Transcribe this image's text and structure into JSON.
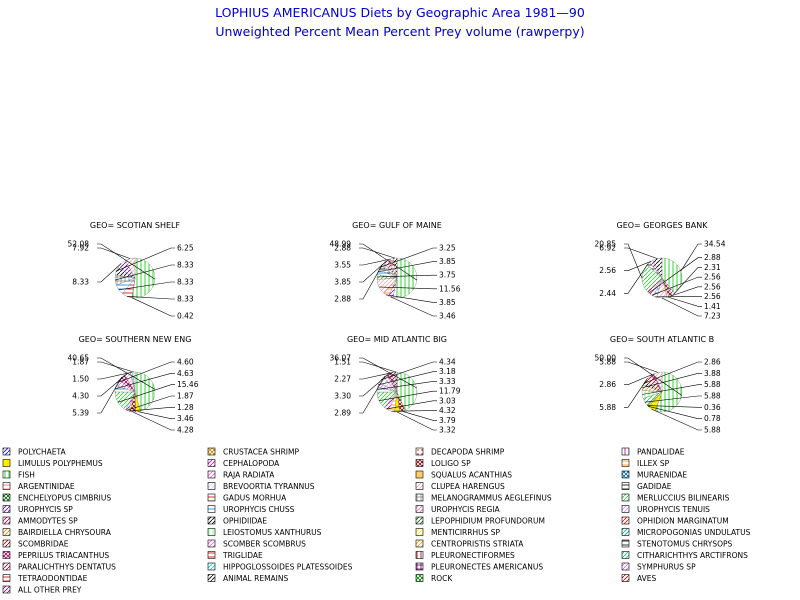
{
  "chart_data": {
    "type": "pie",
    "title": "LOPHIUS AMERICANUS Diets by Geographic Area 1981—90",
    "subtitle": "Unweighted Percent Mean Percent Prey  volume (rawperpy)",
    "legend": {
      "placement": "bottom",
      "items": [
        {
          "name": "POLYCHAETA",
          "color": "#0000ff",
          "pattern": "diag"
        },
        {
          "name": "CRUSTACEA SHRIMP",
          "color": "#cc8800",
          "pattern": "x"
        },
        {
          "name": "DECAPODA SHRIMP",
          "color": "#ff0000",
          "pattern": "dots"
        },
        {
          "name": "PANDALIDAE",
          "color": "#aa00aa",
          "pattern": "vert"
        },
        {
          "name": "LIMULUS POLYPHEMUS",
          "color": "#ffee00",
          "pattern": "solid"
        },
        {
          "name": "CEPHALOPODA",
          "color": "#cc00cc",
          "pattern": "diag"
        },
        {
          "name": "LOLIGO SP",
          "color": "#880000",
          "pattern": "x"
        },
        {
          "name": "ILLEX SP",
          "color": "#ff8800",
          "pattern": "horiz"
        },
        {
          "name": "FISH",
          "color": "#00cc00",
          "pattern": "vert"
        },
        {
          "name": "RAJA RADIATA",
          "color": "#ff66cc",
          "pattern": "diag"
        },
        {
          "name": "SQUALUS ACANTHIAS",
          "color": "#ffcc66",
          "pattern": "solid"
        },
        {
          "name": "MURAENIDAE",
          "color": "#0066aa",
          "pattern": "x"
        },
        {
          "name": "ARGENTINIDAE",
          "color": "#ff6666",
          "pattern": "horiz"
        },
        {
          "name": "BREVOORTIA TYRANNUS",
          "color": "#ccccff",
          "pattern": "diag"
        },
        {
          "name": "CLUPEA HARENGUS",
          "color": "#ffaaaa",
          "pattern": "diag"
        },
        {
          "name": "GADIDAE",
          "color": "#000000",
          "pattern": "horiz"
        },
        {
          "name": "ENCHELYOPUS CIMBRIUS",
          "color": "#006600",
          "pattern": "x"
        },
        {
          "name": "GADUS MORHUA",
          "color": "#cc0000",
          "pattern": "horiz"
        },
        {
          "name": "MELANOGRAMMUS AEGLEFINUS",
          "color": "#888888",
          "pattern": "grid"
        },
        {
          "name": "MERLUCCIUS BILINEARIS",
          "color": "#33cc33",
          "pattern": "diag"
        },
        {
          "name": "UROPHYCIS SP",
          "color": "#660099",
          "pattern": "diag"
        },
        {
          "name": "UROPHYCIS CHUSS",
          "color": "#0088ff",
          "pattern": "horiz"
        },
        {
          "name": "UROPHYCIS REGIA",
          "color": "#ff66aa",
          "pattern": "diag"
        },
        {
          "name": "UROPHYCIS TENUIS",
          "color": "#cc99ff",
          "pattern": "diag"
        },
        {
          "name": "AMMODYTES SP",
          "color": "#aa0066",
          "pattern": "diag"
        },
        {
          "name": "OPHIDIIDAE",
          "color": "#000000",
          "pattern": "diag"
        },
        {
          "name": "LEPOPHIDIUM PROFUNDORUM",
          "color": "#006600",
          "pattern": "diag"
        },
        {
          "name": "OPHIDION MARGINATUM",
          "color": "#ff0000",
          "pattern": "diag"
        },
        {
          "name": "BAIRDIELLA CHRYSOURA",
          "color": "#cc8800",
          "pattern": "diag"
        },
        {
          "name": "LEIOSTOMUS XANTHURUS",
          "color": "#66ff66",
          "pattern": "vert"
        },
        {
          "name": "MENTICIRRHUS SP",
          "color": "#ffee00",
          "pattern": "diag"
        },
        {
          "name": "MICROPOGONIAS UNDULATUS",
          "color": "#00aaaa",
          "pattern": "diag"
        },
        {
          "name": "SCOMBRIDAE",
          "color": "#aa0000",
          "pattern": "diag"
        },
        {
          "name": "SCOMBER SCOMBRUS",
          "color": "#ff66cc",
          "pattern": "diag"
        },
        {
          "name": "CENTROPRISTIS STRIATA",
          "color": "#ff9900",
          "pattern": "diag"
        },
        {
          "name": "STENOTOMUS CHRYSOPS",
          "color": "#000000",
          "pattern": "horiz"
        },
        {
          "name": "PEPRILUS TRIACANTHUS",
          "color": "#aa0066",
          "pattern": "x"
        },
        {
          "name": "TRIGLIDAE",
          "color": "#cc0000",
          "pattern": "horiz"
        },
        {
          "name": "PLEURONECTIFORMES",
          "color": "#880000",
          "pattern": "vert"
        },
        {
          "name": "CITHARICHTHYS ARCTIFRONS",
          "color": "#00cc66",
          "pattern": "diag"
        },
        {
          "name": "PARALICHTHYS DENTATUS",
          "color": "#aa0044",
          "pattern": "diag"
        },
        {
          "name": "HIPPOGLOSSOIDES PLATESSOIDES",
          "color": "#00ccff",
          "pattern": "diag"
        },
        {
          "name": "PLEURONECTES AMERICANUS",
          "color": "#660066",
          "pattern": "grid"
        },
        {
          "name": "SYMPHURUS SP",
          "color": "#cc66ff",
          "pattern": "diag"
        },
        {
          "name": "TETRAODONTIDAE",
          "color": "#cc0000",
          "pattern": "horiz"
        },
        {
          "name": "ANIMAL REMAINS",
          "color": "#000000",
          "pattern": "diag"
        },
        {
          "name": "ROCK",
          "color": "#008800",
          "pattern": "x"
        },
        {
          "name": "AVES",
          "color": "#cc0000",
          "pattern": "diag"
        },
        {
          "name": "ALL OTHER PREY",
          "color": "#880088",
          "pattern": "diag"
        }
      ]
    },
    "panels": [
      {
        "title": "GEO= SCOTIAN SHELF",
        "slices": [
          {
            "prey": "FISH",
            "value": 52.08,
            "label": "52.08",
            "side": "left"
          },
          {
            "prey": "CRUSTACEA SHRIMP",
            "value": 0.42,
            "label": "0.42",
            "side": "right"
          },
          {
            "prey": "GADUS MORHUA",
            "value": 8.33,
            "label": "8.33",
            "side": "right"
          },
          {
            "prey": "UROPHYCIS CHUSS",
            "value": 8.33,
            "label": "8.33",
            "side": "right"
          },
          {
            "prey": "MELANOGRAMMUS AEGLEFINUS",
            "value": 8.33,
            "label": "8.33",
            "side": "right"
          },
          {
            "prey": "ANIMAL REMAINS",
            "value": 6.25,
            "label": "6.25",
            "side": "right"
          },
          {
            "prey": "UROPHYCIS SP",
            "value": 8.33,
            "label": "8.33",
            "side": "left"
          },
          {
            "prey": "CLUPEA HARENGUS",
            "value": 7.92,
            "label": "7.92",
            "side": "left"
          }
        ]
      },
      {
        "title": "GEO= GULF OF MAINE",
        "slices": [
          {
            "prey": "FISH",
            "value": 48.99,
            "label": "48.99",
            "side": "left"
          },
          {
            "prey": "CEPHALOPODA",
            "value": 3.46,
            "label": "3.46",
            "side": "right"
          },
          {
            "prey": "ILLEX SP",
            "value": 3.85,
            "label": "3.85",
            "side": "right"
          },
          {
            "prey": "CLUPEA HARENGUS",
            "value": 11.56,
            "label": "11.56",
            "side": "right"
          },
          {
            "prey": "MERLUCCIUS BILINEARIS",
            "value": 3.75,
            "label": "3.75",
            "side": "right"
          },
          {
            "prey": "UROPHYCIS CHUSS",
            "value": 3.85,
            "label": "3.85",
            "side": "right"
          },
          {
            "prey": "GADIDAE",
            "value": 3.25,
            "label": "3.25",
            "side": "right"
          },
          {
            "prey": "MELANOGRAMMUS AEGLEFINUS",
            "value": 2.88,
            "label": "2.88",
            "side": "left"
          },
          {
            "prey": "AMMODYTES SP",
            "value": 3.85,
            "label": "3.85",
            "side": "left"
          },
          {
            "prey": "GADUS MORHUA",
            "value": 3.55,
            "label": "3.55",
            "side": "left"
          },
          {
            "prey": "ANIMAL REMAINS",
            "value": 2.88,
            "label": "2.88",
            "side": "left"
          }
        ]
      },
      {
        "title": "GEO= GEORGES BANK",
        "slices": [
          {
            "prey": "FISH",
            "value": 34.54,
            "label": "34.54",
            "side": "right"
          },
          {
            "prey": "CEPHALOPODA",
            "value": 2.31,
            "label": "2.31",
            "side": "right"
          },
          {
            "prey": "LOLIGO SP",
            "value": 2.56,
            "label": "2.56",
            "side": "right"
          },
          {
            "prey": "ILLEX SP",
            "value": 1.41,
            "label": "1.41",
            "side": "right"
          },
          {
            "prey": "CLUPEA HARENGUS",
            "value": 7.23,
            "label": "7.23",
            "side": "right"
          },
          {
            "prey": "UROPHYCIS CHUSS",
            "value": 2.56,
            "label": "2.56",
            "side": "right"
          },
          {
            "prey": "SCOMBER SCOMBRUS",
            "value": 2.56,
            "label": "2.56",
            "side": "right"
          },
          {
            "prey": "AMMODYTES SP",
            "value": 2.88,
            "label": "2.88",
            "side": "right"
          },
          {
            "prey": "MERLUCCIUS BILINEARIS",
            "value": 20.85,
            "label": "20.85",
            "side": "left"
          },
          {
            "prey": "GADIDAE",
            "value": 2.44,
            "label": "2.44",
            "side": "left"
          },
          {
            "prey": "UROPHYCIS SP",
            "value": 2.56,
            "label": "2.56",
            "side": "left"
          },
          {
            "prey": "ANIMAL REMAINS",
            "value": 6.92,
            "label": "6.92",
            "side": "left"
          }
        ]
      },
      {
        "title": "GEO= SOUTHERN NEW ENG",
        "slices": [
          {
            "prey": "FISH",
            "value": 40.65,
            "label": "40.65",
            "side": "left"
          },
          {
            "prey": "LIMULUS POLYPHEMUS",
            "value": 3.46,
            "label": "3.46",
            "side": "right"
          },
          {
            "prey": "LOLIGO SP",
            "value": 4.28,
            "label": "4.28",
            "side": "right"
          },
          {
            "prey": "ILLEX SP",
            "value": 1.28,
            "label": "1.28",
            "side": "right"
          },
          {
            "prey": "CEPHALOPODA",
            "value": 1.87,
            "label": "1.87",
            "side": "right"
          },
          {
            "prey": "MERLUCCIUS BILINEARIS",
            "value": 15.46,
            "label": "15.46",
            "side": "right"
          },
          {
            "prey": "UROPHYCIS CHUSS",
            "value": 4.63,
            "label": "4.63",
            "side": "right"
          },
          {
            "prey": "SCOMBER SCOMBRUS",
            "value": 4.6,
            "label": "4.60",
            "side": "right"
          },
          {
            "prey": "PEPRILUS TRIACANTHUS",
            "value": 5.39,
            "label": "5.39",
            "side": "left"
          },
          {
            "prey": "CLUPEA HARENGUS",
            "value": 4.3,
            "label": "4.30",
            "side": "left"
          },
          {
            "prey": "HIPPOGLOSSOIDES PLATESSOIDES",
            "value": 1.5,
            "label": "1.50",
            "side": "left"
          },
          {
            "prey": "BREVOORTIA TYRANNUS",
            "value": 1.87,
            "label": "1.87",
            "side": "left"
          }
        ]
      },
      {
        "title": "GEO= MID ATLANTIC BIG",
        "slices": [
          {
            "prey": "FISH",
            "value": 36.07,
            "label": "36.07",
            "side": "left"
          },
          {
            "prey": "LOLIGO SP",
            "value": 3.79,
            "label": "3.79",
            "side": "right"
          },
          {
            "prey": "LIMULUS POLYPHEMUS",
            "value": 3.32,
            "label": "3.32",
            "side": "right"
          },
          {
            "prey": "ILLEX SP",
            "value": 4.32,
            "label": "4.32",
            "side": "right"
          },
          {
            "prey": "CEPHALOPODA",
            "value": 3.03,
            "label": "3.03",
            "side": "right"
          },
          {
            "prey": "MERLUCCIUS BILINEARIS",
            "value": 11.79,
            "label": "11.79",
            "side": "right"
          },
          {
            "prey": "UROPHYCIS CHUSS",
            "value": 3.33,
            "label": "3.33",
            "side": "right"
          },
          {
            "prey": "SCOMBER SCOMBRUS",
            "value": 3.18,
            "label": "3.18",
            "side": "right"
          },
          {
            "prey": "BREVOORTIA TYRANNUS",
            "value": 4.34,
            "label": "4.34",
            "side": "right"
          },
          {
            "prey": "CLUPEA HARENGUS",
            "value": 2.89,
            "label": "2.89",
            "side": "left"
          },
          {
            "prey": "PEPRILUS TRIACANTHUS",
            "value": 3.3,
            "label": "3.30",
            "side": "left"
          },
          {
            "prey": "PARALICHTHYS DENTATUS",
            "value": 2.27,
            "label": "2.27",
            "side": "left"
          },
          {
            "prey": "ANIMAL REMAINS",
            "value": 1.51,
            "label": "1.51",
            "side": "left"
          }
        ]
      },
      {
        "title": "GEO= SOUTH ATLANTIC B",
        "slices": [
          {
            "prey": "FISH",
            "value": 50.0,
            "label": "50.00",
            "side": "left"
          },
          {
            "prey": "LIMULUS POLYPHEMUS",
            "value": 5.88,
            "label": "5.88",
            "side": "right"
          },
          {
            "prey": "CRUSTACEA SHRIMP",
            "value": 0.78,
            "label": "0.78",
            "side": "right"
          },
          {
            "prey": "ILLEX SP",
            "value": 0.36,
            "label": "0.36",
            "side": "right"
          },
          {
            "prey": "MERLUCCIUS BILINEARIS",
            "value": 5.88,
            "label": "5.88",
            "side": "right"
          },
          {
            "prey": "LEIOSTOMUS XANTHURUS",
            "value": 5.88,
            "label": "5.88",
            "side": "right"
          },
          {
            "prey": "CENTROPRISTIS STRIATA",
            "value": 3.88,
            "label": "3.88",
            "side": "right"
          },
          {
            "prey": "ANIMAL REMAINS",
            "value": 2.86,
            "label": "2.86",
            "side": "right"
          },
          {
            "prey": "SCOMBRIDAE",
            "value": 5.88,
            "label": "5.88",
            "side": "left"
          },
          {
            "prey": "PEPRILUS TRIACANTHUS",
            "value": 2.86,
            "label": "2.86",
            "side": "left"
          },
          {
            "prey": "CLUPEA HARENGUS",
            "value": 5.88,
            "label": "5.88",
            "side": "left"
          }
        ]
      }
    ]
  }
}
